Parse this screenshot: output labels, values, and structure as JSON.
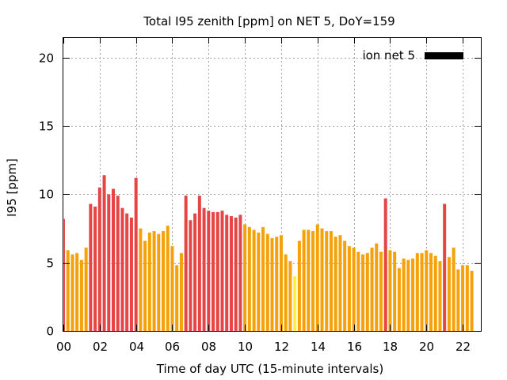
{
  "chart_data": {
    "type": "bar",
    "title": "Total I95 zenith [ppm] on NET 5, DoY=159",
    "xlabel": "Time of day UTC (15-minute intervals)",
    "ylabel": "I95 [ppm]",
    "xlim": [
      0,
      23
    ],
    "ylim": [
      0,
      21.5
    ],
    "xticks": [
      "00",
      "02",
      "04",
      "06",
      "08",
      "10",
      "12",
      "14",
      "16",
      "18",
      "20",
      "22"
    ],
    "yticks": [
      "0",
      "5",
      "10",
      "15",
      "20"
    ],
    "grid": true,
    "legend": {
      "position": "top-right",
      "entries": [
        {
          "label": "ion net 5",
          "color": "#000000"
        }
      ]
    },
    "colors": {
      "red": "#e64545",
      "orange": "#f5a20a",
      "yellow": "#fff040"
    },
    "series": [
      {
        "values": [
          8.2,
          5.9,
          5.6,
          5.7,
          5.2,
          6.1,
          9.3,
          9.1,
          10.5,
          11.4,
          10.0,
          10.4,
          9.9,
          9.0,
          8.6,
          8.3,
          11.2,
          7.5,
          6.6,
          7.2,
          7.3,
          7.1,
          7.3,
          7.7,
          6.2,
          4.8,
          5.7,
          9.9,
          8.1,
          8.6,
          9.9,
          9.0,
          8.8,
          8.7,
          8.7,
          8.8,
          8.5,
          8.4,
          8.3,
          8.5,
          7.8,
          7.6,
          7.4,
          7.2,
          7.6,
          7.1,
          6.8,
          6.9,
          7.0,
          5.6,
          5.1,
          4.0,
          6.6,
          7.4,
          7.4,
          7.3,
          7.8,
          7.5,
          7.3,
          7.3,
          6.9,
          7.0,
          6.6,
          6.2,
          6.1,
          5.8,
          5.6,
          5.7,
          6.1,
          6.4,
          5.8,
          9.7,
          5.9,
          5.8,
          4.6,
          5.3,
          5.2,
          5.3,
          5.7,
          5.7,
          5.9,
          5.7,
          5.5,
          5.1,
          9.3,
          5.4,
          6.1,
          4.5,
          4.8,
          4.8,
          4.4
        ],
        "levels": [
          "red",
          "orange",
          "orange",
          "orange",
          "orange",
          "orange",
          "red",
          "red",
          "red",
          "red",
          "red",
          "red",
          "red",
          "red",
          "red",
          "red",
          "red",
          "orange",
          "orange",
          "orange",
          "orange",
          "orange",
          "orange",
          "orange",
          "orange",
          "orange",
          "orange",
          "red",
          "red",
          "red",
          "red",
          "red",
          "red",
          "red",
          "red",
          "red",
          "red",
          "red",
          "red",
          "red",
          "orange",
          "orange",
          "orange",
          "orange",
          "orange",
          "orange",
          "orange",
          "orange",
          "orange",
          "orange",
          "orange",
          "yellow",
          "orange",
          "orange",
          "orange",
          "orange",
          "orange",
          "orange",
          "orange",
          "orange",
          "orange",
          "orange",
          "orange",
          "orange",
          "orange",
          "orange",
          "orange",
          "orange",
          "orange",
          "orange",
          "orange",
          "red",
          "orange",
          "orange",
          "orange",
          "orange",
          "orange",
          "orange",
          "orange",
          "orange",
          "orange",
          "orange",
          "orange",
          "orange",
          "red",
          "orange",
          "orange",
          "orange",
          "orange",
          "orange",
          "orange"
        ]
      }
    ]
  }
}
